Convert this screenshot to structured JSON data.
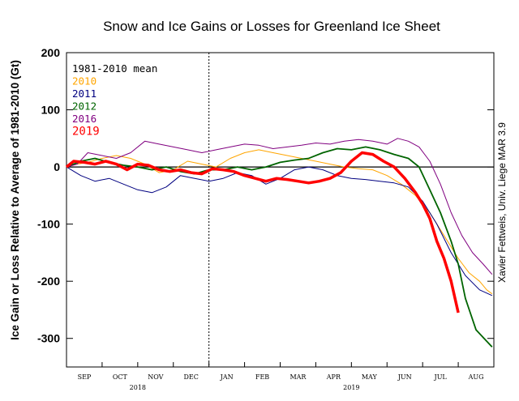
{
  "chart_data": {
    "type": "line",
    "title": "Snow and Ice Gains or Losses for Greenland Ice Sheet",
    "ylabel": "Ice Gain or Loss Relative to Average of 1981-2010 (Gt)",
    "credit": "Xavier Fettweis, Univ. Liege MAR 3.9",
    "ylim": [
      -350,
      200
    ],
    "yticks": [
      200,
      100,
      0,
      -100,
      -200,
      -300
    ],
    "xlim": [
      0,
      12
    ],
    "month_ticks": [
      {
        "label": "SEP",
        "x": 0.5
      },
      {
        "label": "OCT",
        "x": 1.5
      },
      {
        "label": "NOV",
        "x": 2.5
      },
      {
        "label": "DEC",
        "x": 3.5
      },
      {
        "label": "JAN",
        "x": 4.5
      },
      {
        "label": "FEB",
        "x": 5.5
      },
      {
        "label": "MAR",
        "x": 6.5
      },
      {
        "label": "APR",
        "x": 7.5
      },
      {
        "label": "MAY",
        "x": 8.5
      },
      {
        "label": "JUN",
        "x": 9.5
      },
      {
        "label": "JUL",
        "x": 10.5
      },
      {
        "label": "AUG",
        "x": 11.5
      }
    ],
    "years": [
      {
        "label": "2018",
        "x": 2.0
      },
      {
        "label": "2019",
        "x": 8.0
      }
    ],
    "year_divider": 4,
    "mean_value": 0,
    "legend_position": "top-left",
    "series": [
      {
        "name": "1981-2010 mean",
        "color": "#000000",
        "x": [
          0,
          12
        ],
        "y": [
          0,
          0
        ]
      },
      {
        "name": "2010",
        "color": "#FFA500",
        "x": [
          0,
          0.3,
          0.6,
          1.0,
          1.4,
          1.8,
          2.2,
          2.6,
          3.0,
          3.4,
          3.8,
          4.2,
          4.6,
          5.0,
          5.4,
          5.8,
          6.2,
          6.6,
          7.0,
          7.4,
          7.8,
          8.2,
          8.6,
          9.0,
          9.4,
          9.8,
          10.2,
          10.6,
          11.0,
          11.3,
          11.6,
          11.8,
          11.95
        ],
        "y": [
          0,
          5,
          8,
          15,
          20,
          15,
          5,
          -10,
          -5,
          10,
          5,
          0,
          15,
          25,
          30,
          25,
          20,
          15,
          10,
          5,
          0,
          -3,
          -5,
          -15,
          -30,
          -50,
          -80,
          -120,
          -160,
          -185,
          -200,
          -215,
          -222
        ]
      },
      {
        "name": "2011",
        "color": "#000080",
        "x": [
          0,
          0.4,
          0.8,
          1.2,
          1.6,
          2.0,
          2.4,
          2.8,
          3.2,
          3.6,
          4.0,
          4.4,
          4.8,
          5.2,
          5.6,
          6.0,
          6.4,
          6.8,
          7.2,
          7.6,
          8.0,
          8.4,
          8.8,
          9.2,
          9.6,
          10.0,
          10.4,
          10.8,
          11.2,
          11.6,
          11.95
        ],
        "y": [
          0,
          -15,
          -25,
          -20,
          -30,
          -40,
          -45,
          -35,
          -15,
          -20,
          -25,
          -20,
          -10,
          -15,
          -30,
          -20,
          -5,
          0,
          -5,
          -15,
          -20,
          -22,
          -25,
          -28,
          -35,
          -60,
          -100,
          -150,
          -190,
          -215,
          -225
        ]
      },
      {
        "name": "2012",
        "color": "#006400",
        "x": [
          0,
          0.4,
          0.8,
          1.2,
          1.6,
          2.0,
          2.4,
          2.8,
          3.2,
          3.6,
          4.0,
          4.4,
          4.8,
          5.2,
          5.6,
          6.0,
          6.4,
          6.8,
          7.2,
          7.6,
          8.0,
          8.4,
          8.8,
          9.2,
          9.6,
          9.9,
          10.2,
          10.5,
          10.8,
          11.0,
          11.2,
          11.5,
          11.8,
          11.95
        ],
        "y": [
          0,
          10,
          15,
          8,
          3,
          0,
          -5,
          0,
          -8,
          -12,
          -5,
          -5,
          0,
          -5,
          0,
          8,
          12,
          15,
          25,
          32,
          30,
          35,
          30,
          22,
          15,
          0,
          -40,
          -80,
          -130,
          -170,
          -230,
          -285,
          -305,
          -315
        ]
      },
      {
        "name": "2016",
        "color": "#800080",
        "x": [
          0,
          0.3,
          0.6,
          1.0,
          1.4,
          1.8,
          2.2,
          2.6,
          3.0,
          3.4,
          3.8,
          4.2,
          4.6,
          5.0,
          5.4,
          5.8,
          6.2,
          6.6,
          7.0,
          7.4,
          7.8,
          8.2,
          8.6,
          9.0,
          9.3,
          9.6,
          9.9,
          10.2,
          10.5,
          10.8,
          11.1,
          11.4,
          11.7,
          11.95
        ],
        "y": [
          0,
          5,
          25,
          20,
          15,
          25,
          45,
          40,
          35,
          30,
          25,
          30,
          35,
          40,
          38,
          32,
          35,
          38,
          42,
          40,
          45,
          48,
          45,
          40,
          50,
          45,
          35,
          10,
          -30,
          -80,
          -120,
          -150,
          -170,
          -188
        ]
      },
      {
        "name": "2019",
        "color": "#FF0000",
        "x": [
          0,
          0.2,
          0.5,
          0.8,
          1.1,
          1.4,
          1.7,
          2.0,
          2.3,
          2.6,
          2.9,
          3.2,
          3.5,
          3.8,
          4.1,
          4.4,
          4.7,
          5.0,
          5.3,
          5.6,
          5.9,
          6.2,
          6.5,
          6.8,
          7.1,
          7.4,
          7.7,
          8.0,
          8.3,
          8.6,
          8.9,
          9.2,
          9.5,
          9.8,
          10.0,
          10.2,
          10.4,
          10.6,
          10.8,
          11.0
        ],
        "y": [
          0,
          10,
          8,
          5,
          10,
          5,
          -5,
          5,
          3,
          -5,
          -8,
          -5,
          -10,
          -12,
          -3,
          -5,
          -8,
          -15,
          -20,
          -25,
          -20,
          -22,
          -25,
          -28,
          -25,
          -20,
          -10,
          10,
          25,
          22,
          10,
          0,
          -20,
          -45,
          -65,
          -90,
          -130,
          -160,
          -200,
          -255
        ]
      }
    ]
  }
}
